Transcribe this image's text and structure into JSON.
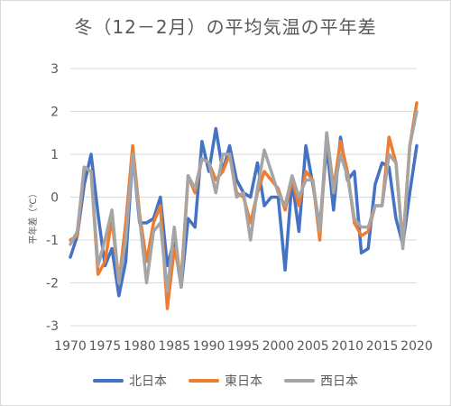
{
  "chart_data": {
    "type": "line",
    "title": "冬（12－2月）の平均気温の平年差",
    "ylabel": "平年差（℃）",
    "ylim": [
      -3,
      3
    ],
    "yticks": [
      3,
      2,
      1,
      0,
      -1,
      -2,
      -3
    ],
    "xlim": [
      1970,
      2020
    ],
    "xticks": [
      1970,
      1975,
      1980,
      1985,
      1990,
      1995,
      2000,
      2005,
      2010,
      2015,
      2020
    ],
    "grid": "horizontal",
    "legend_position": "bottom",
    "x": [
      1970,
      1971,
      1972,
      1973,
      1974,
      1975,
      1976,
      1977,
      1978,
      1979,
      1980,
      1981,
      1982,
      1983,
      1984,
      1985,
      1986,
      1987,
      1988,
      1989,
      1990,
      1991,
      1992,
      1993,
      1994,
      1995,
      1996,
      1997,
      1998,
      1999,
      2000,
      2001,
      2002,
      2003,
      2004,
      2005,
      2006,
      2007,
      2008,
      2009,
      2010,
      2011,
      2012,
      2013,
      2014,
      2015,
      2016,
      2017,
      2018,
      2019,
      2020
    ],
    "series": [
      {
        "name": "北日本",
        "color": "#4472c4",
        "values": [
          -1.4,
          -0.9,
          0.3,
          1.0,
          -0.4,
          -1.6,
          -1.2,
          -2.3,
          -1.5,
          1.0,
          -0.6,
          -0.6,
          -0.5,
          0.0,
          -1.6,
          -1.0,
          -2.1,
          -0.5,
          -0.7,
          1.3,
          0.6,
          1.6,
          0.6,
          1.2,
          0.4,
          0.1,
          0.0,
          0.8,
          -0.2,
          0.0,
          0.0,
          -1.7,
          0.4,
          -0.8,
          1.2,
          0.3,
          -0.7,
          1.2,
          -0.3,
          1.4,
          0.4,
          0.6,
          -1.3,
          -1.2,
          0.3,
          0.8,
          0.7,
          -0.5,
          -1.1,
          0.1,
          1.2
        ]
      },
      {
        "name": "東日本",
        "color": "#ed7d31",
        "values": [
          -1.0,
          -0.9,
          0.7,
          0.6,
          -1.8,
          -1.5,
          -0.5,
          -2.0,
          -0.6,
          1.2,
          -0.4,
          -1.5,
          -0.6,
          -0.2,
          -2.6,
          -1.2,
          -1.9,
          0.5,
          0.1,
          0.9,
          0.8,
          0.4,
          0.6,
          1.0,
          0.1,
          0.0,
          -0.6,
          0.1,
          0.6,
          0.4,
          0.2,
          -0.3,
          0.4,
          -0.2,
          0.6,
          0.4,
          -1.0,
          1.5,
          0.2,
          1.3,
          0.6,
          -0.6,
          -0.9,
          -0.8,
          -0.2,
          -0.2,
          1.4,
          0.8,
          -1.1,
          1.2,
          2.2
        ]
      },
      {
        "name": "西日本",
        "color": "#a5a5a5",
        "values": [
          -1.1,
          -0.8,
          0.7,
          0.6,
          -1.6,
          -1.0,
          -0.3,
          -2.0,
          -1.0,
          1.0,
          -0.5,
          -2.0,
          -0.8,
          -0.6,
          -2.2,
          -0.7,
          -2.1,
          0.5,
          0.2,
          0.9,
          0.8,
          0.1,
          1.0,
          1.0,
          0.0,
          0.1,
          -1.0,
          0.2,
          1.1,
          0.6,
          0.1,
          -0.2,
          0.5,
          0.0,
          0.4,
          0.4,
          -0.8,
          1.5,
          0.1,
          1.0,
          0.5,
          -0.5,
          -0.7,
          -0.7,
          -0.2,
          -0.2,
          1.0,
          0.8,
          -1.2,
          1.2,
          2.0
        ]
      }
    ]
  }
}
